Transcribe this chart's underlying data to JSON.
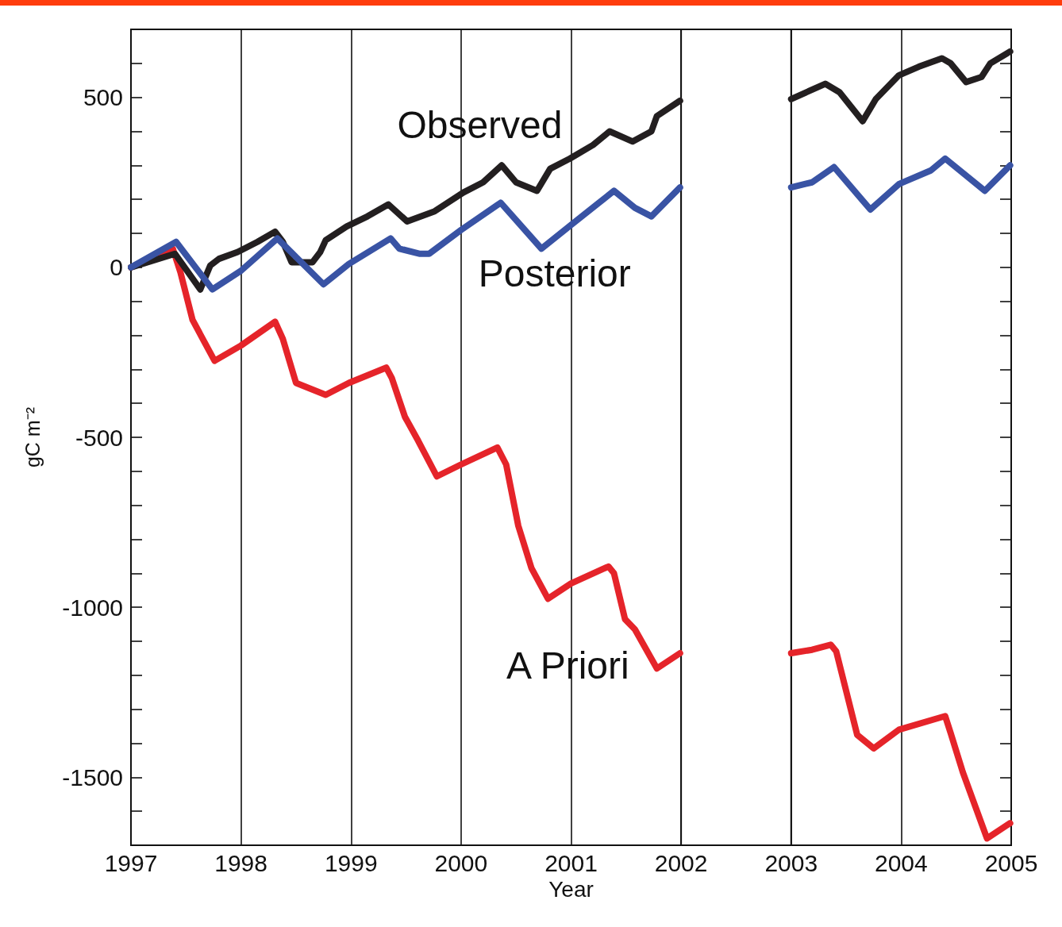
{
  "chart_data": {
    "type": "line",
    "xlabel": "Year",
    "ylabel": "gC m⁻²",
    "xlim": [
      1997,
      2005
    ],
    "xticks": [
      1997,
      1998,
      1999,
      2000,
      2001,
      2002,
      2003,
      2004,
      2005
    ],
    "ylim": [
      -1700,
      700
    ],
    "yticks": [
      {
        "value": -1600,
        "label": null
      },
      -1500,
      {
        "value": -1400,
        "label": null
      },
      {
        "value": -1300,
        "label": null
      },
      {
        "value": -1200,
        "label": null
      },
      {
        "value": -1100,
        "label": null
      },
      -1000,
      {
        "value": -900,
        "label": null
      },
      {
        "value": -800,
        "label": null
      },
      {
        "value": -700,
        "label": null
      },
      {
        "value": -600,
        "label": null
      },
      -500,
      {
        "value": -400,
        "label": null
      },
      {
        "value": -300,
        "label": null
      },
      {
        "value": -200,
        "label": null
      },
      {
        "value": -100,
        "label": null
      },
      0,
      {
        "value": 100,
        "label": null
      },
      {
        "value": 200,
        "label": null
      },
      {
        "value": 300,
        "label": null
      },
      {
        "value": 400,
        "label": null
      },
      500,
      {
        "value": 600,
        "label": null
      }
    ],
    "grid": "x",
    "legend": false,
    "marker": "none",
    "line_style": "solid",
    "bands": [
      {
        "axis": "x",
        "from": 2002,
        "to": 2003,
        "color": "#ffffff"
      }
    ],
    "series": [
      {
        "name": "A Priori",
        "color": "#e5242a",
        "x": [
          1997,
          1997.38,
          1997.45,
          1997.56,
          1997.76,
          1998,
          1998.31,
          1998.38,
          1998.5,
          1998.77,
          1998.98,
          1999.32,
          1999.37,
          1999.49,
          1999.61,
          1999.78,
          2000,
          2000.33,
          2000.41,
          2000.52,
          2000.64,
          2000.79,
          2001,
          2001.34,
          2001.39,
          2001.49,
          2001.58,
          2001.78,
          2001.99,
          2002.5,
          2003,
          2003.19,
          2003.36,
          2003.41,
          2003.6,
          2003.75,
          2003.98,
          2004.4,
          2004.45,
          2004.56,
          2004.78,
          2004.99
        ],
        "values": [
          0,
          55,
          -15,
          -155,
          -275,
          -230,
          -160,
          -210,
          -340,
          -375,
          -340,
          -295,
          -325,
          -440,
          -510,
          -615,
          -580,
          -530,
          -580,
          -760,
          -885,
          -975,
          -930,
          -880,
          -900,
          -1035,
          -1065,
          -1180,
          -1135,
          null,
          -1135,
          -1125,
          -1110,
          -1130,
          -1375,
          -1415,
          -1360,
          -1320,
          -1370,
          -1485,
          -1680,
          -1635
        ]
      },
      {
        "name": "Observed",
        "color": "#231f20",
        "x": [
          1997,
          1997.4,
          1997.63,
          1997.72,
          1997.8,
          1997.97,
          1998.15,
          1998.31,
          1998.38,
          1998.46,
          1998.65,
          1998.72,
          1998.77,
          1998.96,
          1999.15,
          1999.34,
          1999.51,
          1999.76,
          2000.02,
          2000.2,
          2000.37,
          2000.5,
          2000.69,
          2000.81,
          2000.99,
          2001.2,
          2001.35,
          2001.56,
          2001.73,
          2001.78,
          2001.99,
          2002.5,
          2003,
          2003.31,
          2003.44,
          2003.65,
          2003.77,
          2003.98,
          2004.16,
          2004.37,
          2004.45,
          2004.59,
          2004.73,
          2004.81,
          2004.99
        ],
        "values": [
          0,
          40,
          -65,
          5,
          25,
          45,
          75,
          105,
          75,
          15,
          15,
          45,
          80,
          120,
          150,
          185,
          135,
          165,
          220,
          250,
          300,
          250,
          225,
          290,
          320,
          360,
          400,
          370,
          400,
          445,
          490,
          null,
          495,
          540,
          515,
          430,
          495,
          565,
          590,
          615,
          600,
          545,
          560,
          600,
          635
        ]
      },
      {
        "name": "Posterior",
        "color": "#3953a4",
        "x": [
          1997,
          1997.41,
          1997.74,
          1998,
          1998.33,
          1998.75,
          1998.98,
          1999.36,
          1999.44,
          1999.62,
          1999.71,
          2000,
          2000.36,
          2000.73,
          2001,
          2001.39,
          2001.58,
          2001.73,
          2001.99,
          2002.5,
          2003,
          2003.19,
          2003.39,
          2003.72,
          2003.98,
          2004.27,
          2004.4,
          2004.76,
          2004.99
        ],
        "values": [
          0,
          75,
          -65,
          -10,
          85,
          -50,
          10,
          85,
          55,
          40,
          40,
          110,
          190,
          55,
          125,
          225,
          175,
          150,
          235,
          null,
          235,
          250,
          295,
          170,
          245,
          285,
          320,
          225,
          300
        ]
      }
    ]
  }
}
